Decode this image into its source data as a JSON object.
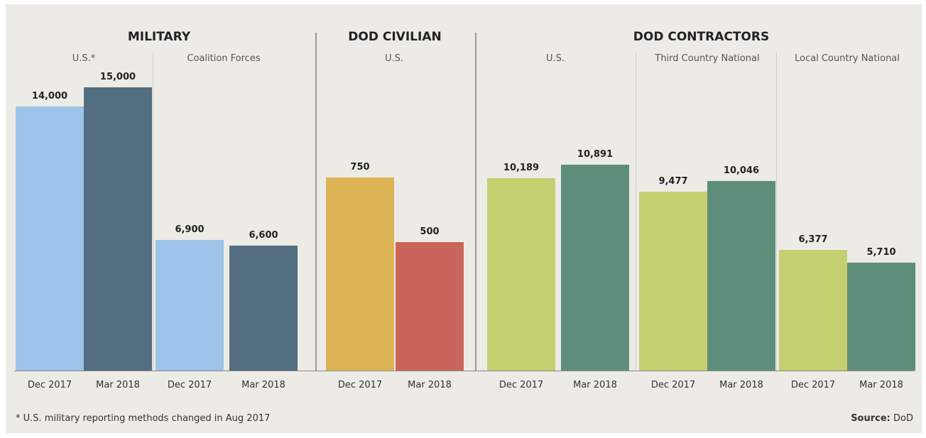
{
  "chart_data": {
    "type": "grouped-panels-bar",
    "footnote": "* U.S. military reporting methods changed in Aug 2017",
    "source_label": "Source:",
    "source": "DoD",
    "groups": [
      {
        "name": "MILITARY",
        "ylim": [
          0,
          15000
        ],
        "colors": [
          "#9cc4e8",
          "#536e80"
        ],
        "subgroups": [
          {
            "label": "U.S.*",
            "categories": [
              "Dec 2017",
              "Mar 2018"
            ],
            "values": [
              14000,
              15000
            ],
            "value_labels": [
              "14,000",
              "15,000"
            ]
          },
          {
            "label": "Coalition Forces",
            "categories": [
              "Dec 2017",
              "Mar 2018"
            ],
            "values": [
              6900,
              6600
            ],
            "value_labels": [
              "6,900",
              "6,600"
            ]
          }
        ]
      },
      {
        "name": "DOD CIVILIAN",
        "ylim": [
          0,
          1100
        ],
        "colors": [
          "#dcb455",
          "#c9655a"
        ],
        "subgroups": [
          {
            "label": "U.S.",
            "categories": [
              "Dec 2017",
              "Mar 2018"
            ],
            "values": [
              750,
              500
            ],
            "value_labels": [
              "750",
              "500"
            ]
          }
        ]
      },
      {
        "name": "DOD CONTRACTORS",
        "ylim": [
          0,
          15000
        ],
        "colors": [
          "#c6cf70",
          "#5e8e7a"
        ],
        "subgroups": [
          {
            "label": "U.S.",
            "categories": [
              "Dec 2017",
              "Mar 2018"
            ],
            "values": [
              10189,
              10891
            ],
            "value_labels": [
              "10,189",
              "10,891"
            ]
          },
          {
            "label": "Third Country National",
            "categories": [
              "Dec 2017",
              "Mar 2018"
            ],
            "values": [
              9477,
              10046
            ],
            "value_labels": [
              "9,477",
              "10,046"
            ]
          },
          {
            "label": "Local Country National",
            "categories": [
              "Dec 2017",
              "Mar 2018"
            ],
            "values": [
              6377,
              5710
            ],
            "value_labels": [
              "6,377",
              "5,710"
            ]
          }
        ]
      }
    ]
  }
}
